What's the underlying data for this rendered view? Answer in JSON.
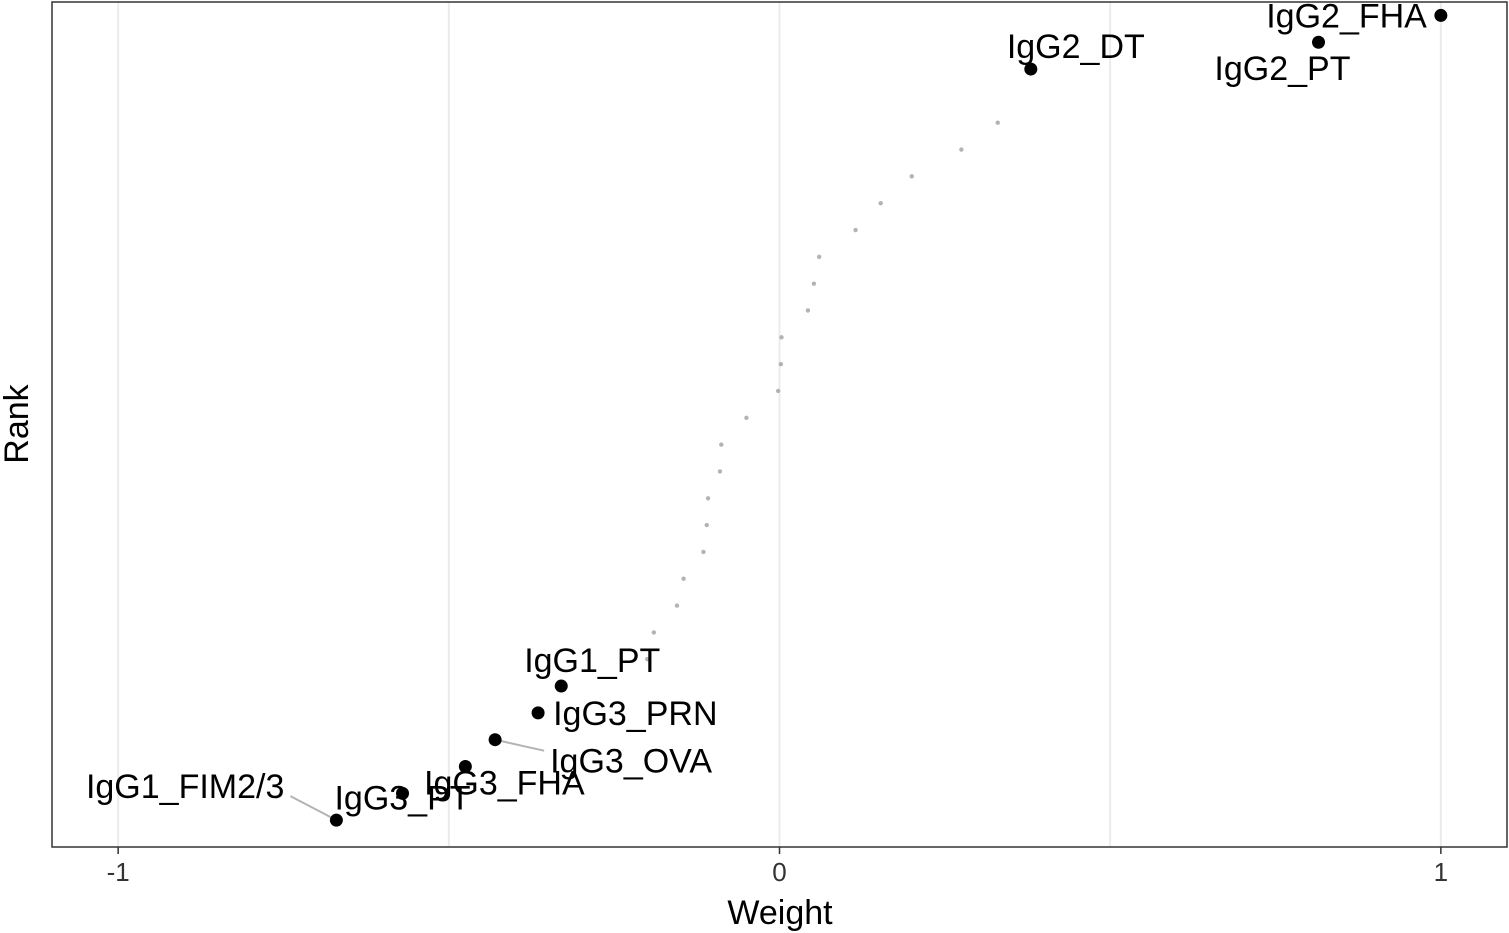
{
  "chart_data": {
    "type": "scatter",
    "xlabel": "Weight",
    "ylabel": "Rank",
    "xlim": [
      -1.1,
      1.1
    ],
    "ylim": [
      0,
      31.5
    ],
    "x_ticks": [
      -1,
      0,
      1
    ],
    "x_tick_labels": [
      "-1",
      "0",
      "1"
    ],
    "grid": "vertical major and minor",
    "colors": {
      "highlight_point": "#000000",
      "background_point": "#b3b3b3",
      "grid": "#ebebeb",
      "panel_border": "#333333",
      "leader_line": "#b3b3b3"
    },
    "highlighted_points": [
      {
        "name": "IgG1_FIM2/3",
        "x": -0.67,
        "y": 1
      },
      {
        "name": "IgG3_PT",
        "x": -0.57,
        "y": 2
      },
      {
        "name": "IgG3_FHA",
        "x": -0.475,
        "y": 3
      },
      {
        "name": "IgG3_OVA",
        "x": -0.43,
        "y": 4
      },
      {
        "name": "IgG3_PRN",
        "x": -0.365,
        "y": 5
      },
      {
        "name": "IgG1_PT",
        "x": -0.33,
        "y": 6
      },
      {
        "name": "IgG2_DT",
        "x": 0.38,
        "y": 29
      },
      {
        "name": "IgG2_PT",
        "x": 0.815,
        "y": 30
      },
      {
        "name": "IgG2_FHA",
        "x": 1.0,
        "y": 31
      }
    ],
    "background_points": [
      {
        "x": -0.2,
        "y": 7
      },
      {
        "x": -0.19,
        "y": 8
      },
      {
        "x": -0.155,
        "y": 9
      },
      {
        "x": -0.145,
        "y": 10
      },
      {
        "x": -0.115,
        "y": 11
      },
      {
        "x": -0.11,
        "y": 12
      },
      {
        "x": -0.108,
        "y": 13
      },
      {
        "x": -0.09,
        "y": 14
      },
      {
        "x": -0.088,
        "y": 15
      },
      {
        "x": -0.05,
        "y": 16
      },
      {
        "x": -0.002,
        "y": 17
      },
      {
        "x": 0.002,
        "y": 18
      },
      {
        "x": 0.003,
        "y": 19
      },
      {
        "x": 0.043,
        "y": 20
      },
      {
        "x": 0.052,
        "y": 21
      },
      {
        "x": 0.06,
        "y": 22
      },
      {
        "x": 0.115,
        "y": 23
      },
      {
        "x": 0.153,
        "y": 24
      },
      {
        "x": 0.2,
        "y": 25
      },
      {
        "x": 0.275,
        "y": 26
      },
      {
        "x": 0.33,
        "y": 27
      }
    ]
  }
}
